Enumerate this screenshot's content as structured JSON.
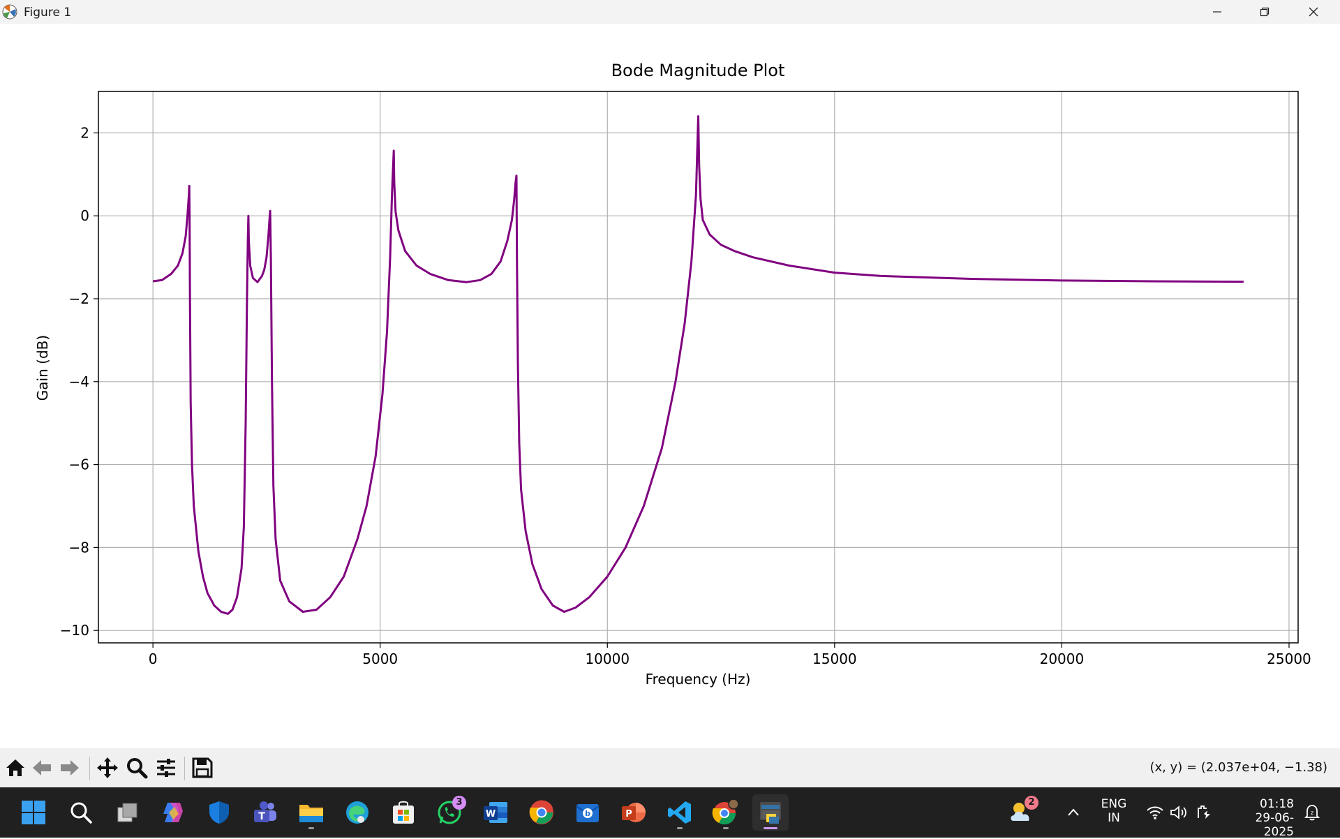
{
  "window": {
    "title": "Figure 1"
  },
  "colors": {
    "line": "#800080",
    "grid": "#b0b0b0",
    "titlebar": "#f3f3f3",
    "taskbar": "#202020"
  },
  "chart_data": {
    "type": "line",
    "title": "Bode Magnitude Plot",
    "xlabel": "Frequency (Hz)",
    "ylabel": "Gain (dB)",
    "xlim": [
      -1200,
      25200
    ],
    "ylim": [
      -10.3,
      3.0
    ],
    "xticks": [
      0,
      5000,
      10000,
      15000,
      20000,
      25000
    ],
    "xtick_labels": [
      "0",
      "5000",
      "10000",
      "15000",
      "20000",
      "25000"
    ],
    "yticks": [
      2,
      0,
      -2,
      -4,
      -6,
      -8,
      -10
    ],
    "ytick_labels": [
      "2",
      "0",
      "−2",
      "−4",
      "−6",
      "−8",
      "−10"
    ],
    "grid": true,
    "series": [
      {
        "color": "#800080",
        "x": [
          0,
          200,
          400,
          550,
          650,
          720,
          760,
          790,
          800,
          805,
          815,
          830,
          860,
          900,
          1000,
          1100,
          1200,
          1350,
          1500,
          1650,
          1750,
          1850,
          1950,
          2000,
          2040,
          2070,
          2090,
          2100,
          2110,
          2140,
          2200,
          2300,
          2400,
          2450,
          2500,
          2540,
          2570,
          2580,
          2595,
          2620,
          2650,
          2700,
          2800,
          3000,
          3300,
          3600,
          3900,
          4200,
          4500,
          4700,
          4900,
          5050,
          5150,
          5220,
          5260,
          5300,
          5310,
          5340,
          5400,
          5550,
          5800,
          6100,
          6500,
          6900,
          7200,
          7450,
          7650,
          7800,
          7900,
          7950,
          7980,
          8000,
          8010,
          8030,
          8060,
          8100,
          8200,
          8350,
          8550,
          8800,
          9050,
          9300,
          9600,
          10000,
          10400,
          10800,
          11200,
          11500,
          11700,
          11850,
          11950,
          12000,
          12020,
          12050,
          12100,
          12250,
          12500,
          12800,
          13200,
          14000,
          15000,
          16000,
          18000,
          20000,
          22000,
          24000
        ],
        "y": [
          -1.58,
          -1.55,
          -1.4,
          -1.2,
          -0.9,
          -0.5,
          0.0,
          0.5,
          0.72,
          0.0,
          -2.0,
          -4.5,
          -6.0,
          -7.0,
          -8.1,
          -8.7,
          -9.1,
          -9.4,
          -9.55,
          -9.6,
          -9.5,
          -9.2,
          -8.5,
          -7.5,
          -5.0,
          -2.0,
          -0.5,
          0.0,
          -0.6,
          -1.2,
          -1.5,
          -1.6,
          -1.45,
          -1.3,
          -1.0,
          -0.5,
          0.0,
          0.12,
          -1.0,
          -4.0,
          -6.5,
          -7.8,
          -8.8,
          -9.3,
          -9.55,
          -9.5,
          -9.2,
          -8.7,
          -7.8,
          -7.0,
          -5.8,
          -4.3,
          -2.8,
          -1.0,
          0.5,
          1.57,
          0.8,
          0.1,
          -0.35,
          -0.85,
          -1.2,
          -1.4,
          -1.55,
          -1.6,
          -1.55,
          -1.4,
          -1.1,
          -0.6,
          -0.1,
          0.4,
          0.8,
          0.97,
          -1.0,
          -3.5,
          -5.5,
          -6.6,
          -7.6,
          -8.4,
          -9.0,
          -9.4,
          -9.55,
          -9.45,
          -9.2,
          -8.7,
          -8.0,
          -7.0,
          -5.6,
          -4.0,
          -2.6,
          -1.1,
          0.5,
          2.4,
          1.2,
          0.4,
          -0.1,
          -0.45,
          -0.7,
          -0.85,
          -1.0,
          -1.2,
          -1.37,
          -1.45,
          -1.52,
          -1.56,
          -1.58,
          -1.59
        ]
      }
    ]
  },
  "toolbar": {
    "buttons": [
      "home-icon",
      "back-icon",
      "forward-icon",
      "pan-icon",
      "zoom-icon",
      "configure-subplots-icon",
      "save-icon"
    ],
    "coords": "(x, y) = (2.037e+04, −1.38)"
  },
  "taskbar": {
    "apps": [
      "start-icon",
      "search-icon",
      "task-view-icon",
      "copilot-icon",
      "defender-icon",
      "teams-icon",
      "file-explorer-icon",
      "edge-icon",
      "store-icon",
      "whatsapp-icon",
      "word-icon",
      "chrome-icon",
      "mail-icon",
      "powerpoint-icon",
      "vscode-icon",
      "chrome-profile-icon",
      "python-icon"
    ],
    "whatsapp_badge": "3",
    "weather_badge": "2",
    "lang_top": "ENG",
    "lang_bottom": "IN",
    "time": "01:18",
    "date": "29-06-2025"
  }
}
